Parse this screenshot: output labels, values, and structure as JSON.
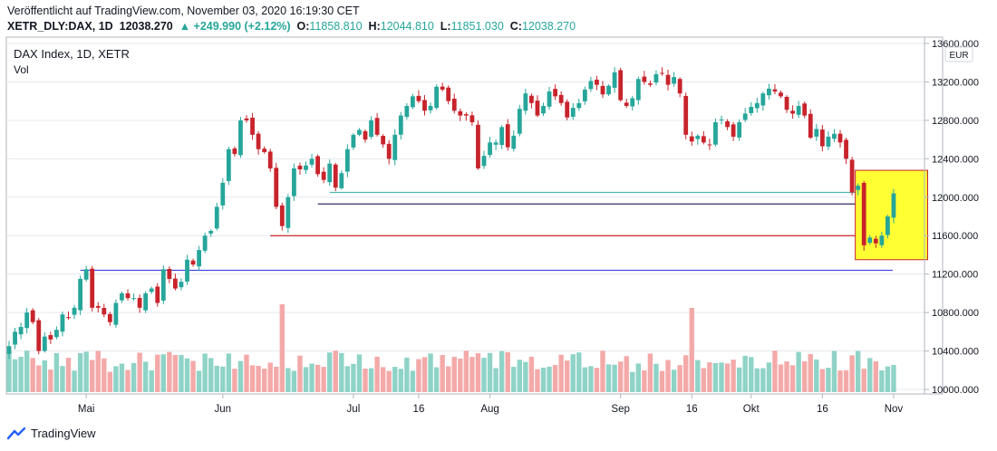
{
  "header": {
    "published": "Veröffentlicht auf TradingView.com, November 03, 2020 16:19:30 CET",
    "symbol": "XETR_DLY:DAX, 1D",
    "last": "12038.270",
    "change": "▲ +249.990 (+2.12%)",
    "o_label": "O:",
    "o_value": "11858.810",
    "h_label": "H:",
    "h_value": "12044.810",
    "l_label": "L:",
    "l_value": "11851.030",
    "c_label": "C:",
    "c_value": "12038.270"
  },
  "pane": {
    "title": "DAX Index, 1D, XETR",
    "vol_label": "Vol",
    "currency": "EUR"
  },
  "footer": {
    "brand": "TradingView"
  },
  "colors": {
    "up": "#26a69a",
    "down": "#c8232b",
    "vol_up": "#8fd3c7",
    "vol_down": "#f4a9a9",
    "grid": "#e6e9ef",
    "highlight": "#ffff33"
  },
  "chart_data": {
    "type": "candlestick",
    "y_ticks": [
      "13600.000",
      "13200.000",
      "12800.000",
      "12400.000",
      "12000.000",
      "11600.000",
      "11200.000",
      "10800.000",
      "10400.000",
      "10000.000"
    ],
    "ylim": [
      10000,
      13600
    ],
    "x_ticks": [
      {
        "label": "Mai",
        "i": 13
      },
      {
        "label": "Jun",
        "i": 36
      },
      {
        "label": "Jul",
        "i": 58
      },
      {
        "label": "16",
        "i": 69
      },
      {
        "label": "Aug",
        "i": 81
      },
      {
        "label": "Sep",
        "i": 103
      },
      {
        "label": "16",
        "i": 115
      },
      {
        "label": "Okt",
        "i": 125
      },
      {
        "label": "16",
        "i": 137
      },
      {
        "label": "Nov",
        "i": 149
      }
    ],
    "horizontal_lines": [
      {
        "value": 12050,
        "color": "#4db6ac",
        "from_i": 54
      },
      {
        "value": 11930,
        "color": "#1c1550",
        "from_i": 52
      },
      {
        "value": 11600,
        "color": "#c8232b",
        "from_i": 44
      },
      {
        "value": 11240,
        "color": "#3d49e0",
        "from_i": 12
      }
    ],
    "highlight_box": {
      "from_i": 143,
      "to_i": 150,
      "y_top": 12280,
      "y_bottom": 11350
    },
    "close": [
      10450,
      10600,
      10650,
      10800,
      10700,
      10400,
      10550,
      10520,
      10620,
      10780,
      10750,
      10850,
      11150,
      11250,
      10850,
      10850,
      10780,
      10700,
      10900,
      11000,
      10950,
      10950,
      10850,
      11000,
      11050,
      10900,
      11250,
      11150,
      11050,
      11120,
      11350,
      11300,
      11450,
      11600,
      11650,
      11900,
      12150,
      12500,
      12450,
      12800,
      12800,
      12650,
      12500,
      12470,
      12300,
      11900,
      11700,
      12000,
      12300,
      12290,
      12330,
      12400,
      12240,
      12180,
      12350,
      12100,
      12250,
      12500,
      12650,
      12700,
      12600,
      12800,
      12650,
      12550,
      12400,
      12650,
      12850,
      12950,
      13050,
      13000,
      12900,
      12950,
      13150,
      13120,
      13000,
      12900,
      12850,
      12850,
      12780,
      12300,
      12430,
      12570,
      12570,
      12730,
      12520,
      12640,
      12920,
      13080,
      12980,
      12850,
      12950,
      13100,
      13050,
      12980,
      12830,
      12930,
      12980,
      13120,
      13210,
      13170,
      13070,
      13160,
      13300,
      13010,
      12950,
      13030,
      13230,
      13200,
      13170,
      13280,
      13290,
      13170,
      13250,
      13080,
      12650,
      12580,
      12640,
      12570,
      12540,
      12780,
      12810,
      12730,
      12630,
      12780,
      12870,
      12940,
      12980,
      13080,
      13130,
      13100,
      13050,
      12910,
      12870,
      12950,
      12850,
      12620,
      12710,
      12530,
      12630,
      12660,
      12570,
      12400,
      12050,
      12120,
      11500,
      11580,
      11520,
      11600,
      11800,
      12040
    ]
  }
}
